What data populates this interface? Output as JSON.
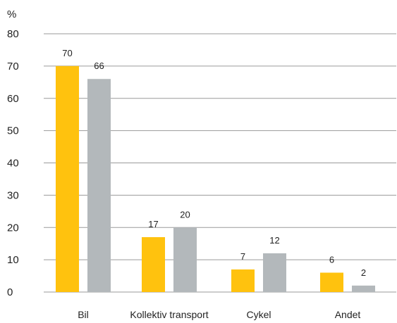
{
  "chart_data": {
    "type": "bar",
    "title": "",
    "xlabel": "",
    "ylabel": "%",
    "ylim": [
      0,
      80
    ],
    "yticks": [
      0,
      10,
      20,
      30,
      40,
      50,
      60,
      70,
      80
    ],
    "grid": true,
    "legend": "none",
    "categories": [
      "Bil",
      "Kollektiv transport",
      "Cykel",
      "Andet"
    ],
    "series": [
      {
        "values": [
          70,
          17,
          7,
          6
        ],
        "color": "#FFC20E"
      },
      {
        "values": [
          66,
          20,
          12,
          2
        ],
        "color": "#B3B8BB"
      }
    ]
  }
}
